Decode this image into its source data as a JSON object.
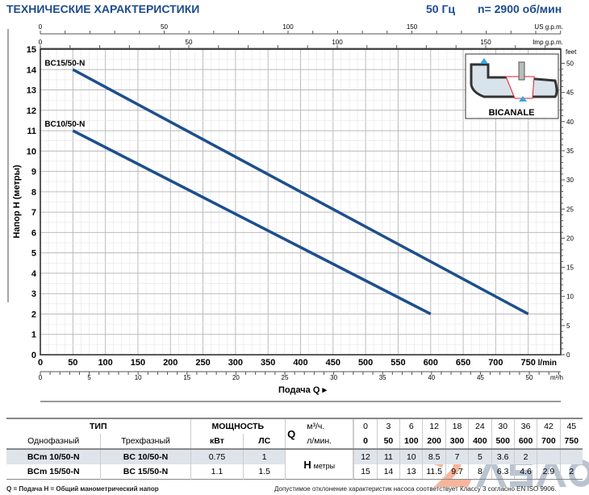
{
  "header": {
    "title": "ТЕХНИЧЕСКИЕ ХАРАКТЕРИСТИКИ",
    "freq": "50 Гц",
    "speed": "n= 2900 об/мин"
  },
  "colors": {
    "curve": "#1d4f8c",
    "title": "#1e4b8f",
    "grid": "#cfcfcf"
  },
  "chart_data": {
    "type": "line",
    "xlabel": "Подача Q",
    "ylabel": "Напор H (метры)",
    "x_unit": "l/min",
    "xlim": [
      0,
      800
    ],
    "ylim": [
      0,
      15
    ],
    "grid": true,
    "x_ticks": [
      0,
      50,
      100,
      150,
      200,
      250,
      300,
      350,
      400,
      450,
      500,
      550,
      600,
      650,
      700,
      750
    ],
    "y_ticks": [
      0,
      1,
      2,
      3,
      4,
      5,
      6,
      7,
      8,
      9,
      10,
      11,
      12,
      13,
      14,
      15
    ],
    "secondary_axes": {
      "us_gpm": {
        "label": "US g.p.m.",
        "ticks": [
          0,
          50,
          100,
          150
        ]
      },
      "imp_gpm": {
        "label": "Imp g.p.m.",
        "ticks": [
          0,
          50,
          100,
          150
        ]
      },
      "m3h": {
        "label": "m³/h",
        "ticks": [
          0,
          5,
          10,
          15,
          20,
          25,
          30,
          35,
          40,
          45,
          50
        ]
      },
      "feet": {
        "label": "feet",
        "ticks": [
          0,
          5,
          10,
          15,
          20,
          25,
          30,
          35,
          40,
          45,
          50
        ]
      }
    },
    "series": [
      {
        "name": "BC10/50-N",
        "x": [
          50,
          600
        ],
        "y": [
          11,
          2
        ]
      },
      {
        "name": "BC15/50-N",
        "x": [
          50,
          750
        ],
        "y": [
          14,
          2
        ]
      }
    ]
  },
  "inset": {
    "label": "BICANALE"
  },
  "table": {
    "type_header": "ТИП",
    "power_header": "МОЩНОСТЬ",
    "single_phase": "Однофазный",
    "three_phase": "Трехфазный",
    "kw": "кВт",
    "hp": "ЛС",
    "q_label": "Q",
    "q_unit1": "м³/ч.",
    "q_unit2": "л/мин.",
    "h_label": "H",
    "h_unit": "метры",
    "q_m3h": [
      "0",
      "3",
      "6",
      "12",
      "18",
      "24",
      "30",
      "36",
      "42",
      "45"
    ],
    "q_lmin": [
      "0",
      "50",
      "100",
      "200",
      "300",
      "400",
      "500",
      "600",
      "700",
      "750"
    ],
    "rows": [
      {
        "single": "BCm 10/50-N",
        "three": "BC 10/50-N",
        "kw": "0.75",
        "hp": "1",
        "h": [
          "12",
          "11",
          "10",
          "8.5",
          "7",
          "5",
          "3.6",
          "2",
          "",
          ""
        ]
      },
      {
        "single": "BCm 15/50-N",
        "three": "BC 15/50-N",
        "kw": "1.1",
        "hp": "1.5",
        "h": [
          "15",
          "14",
          "13",
          "11.5",
          "9.7",
          "8",
          "6.3",
          "4.6",
          "2.9",
          "2"
        ]
      }
    ]
  },
  "footer": {
    "legend": "Q = Подача   H = Общий манометрический напор",
    "tolerance": "Допустимое отклонение характеристик насоса соответствует Классу 3 согласно EN ISO 9906."
  },
  "logo": {
    "text": "ASAO"
  }
}
